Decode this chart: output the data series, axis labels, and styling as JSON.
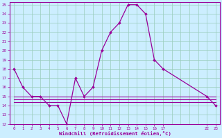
{
  "xlabel": "Windchill (Refroidissement éolien,°C)",
  "line_color": "#990099",
  "bg_color": "#cceeff",
  "grid_color": "#99ccbb",
  "xlim": [
    -0.5,
    23.5
  ],
  "ylim": [
    12,
    25.3
  ],
  "xtick_positions": [
    0,
    1,
    2,
    3,
    4,
    5,
    6,
    7,
    8,
    9,
    10,
    11,
    12,
    13,
    14,
    15,
    16,
    17,
    22,
    23
  ],
  "xtick_labels": [
    "0",
    "1",
    "2",
    "3",
    "4",
    "5",
    "6",
    "7",
    "8",
    "9",
    "10",
    "11",
    "12",
    "13",
    "14",
    "15",
    "16",
    "17",
    "22",
    "23"
  ],
  "ytick_positions": [
    12,
    13,
    14,
    15,
    16,
    17,
    18,
    19,
    20,
    21,
    22,
    23,
    24,
    25
  ],
  "ytick_labels": [
    "12",
    "13",
    "14",
    "15",
    "16",
    "17",
    "18",
    "19",
    "20",
    "21",
    "22",
    "23",
    "24",
    "25"
  ],
  "x_curve1": [
    0,
    1,
    2,
    3,
    4,
    5,
    6,
    7,
    8,
    9,
    10,
    11,
    12,
    13,
    14,
    15,
    16,
    17,
    22,
    23
  ],
  "y_curve1": [
    18,
    16,
    15,
    15,
    14,
    14,
    12,
    17,
    15,
    16,
    20,
    22,
    23,
    25,
    25,
    24,
    19,
    18,
    15,
    14
  ],
  "x_flat1": [
    0,
    1,
    2,
    3,
    4,
    5,
    6,
    7,
    8,
    9,
    10,
    11,
    12,
    13,
    14,
    15,
    16,
    17,
    22,
    23
  ],
  "y_flat1": [
    15,
    15,
    15,
    15,
    15,
    15,
    15,
    15,
    15,
    15,
    15,
    15,
    15,
    15,
    15,
    15,
    15,
    15,
    15,
    15
  ],
  "x_flat2": [
    0,
    1,
    2,
    3,
    4,
    5,
    6,
    7,
    8,
    9,
    10,
    11,
    12,
    13,
    14,
    15,
    16,
    17,
    22,
    23
  ],
  "y_flat2": [
    14.7,
    14.7,
    14.7,
    14.7,
    14.7,
    14.7,
    14.7,
    14.7,
    14.7,
    14.7,
    14.7,
    14.7,
    14.7,
    14.7,
    14.7,
    14.7,
    14.7,
    14.7,
    14.7,
    14.7
  ],
  "x_flat3": [
    0,
    1,
    2,
    3,
    4,
    5,
    6,
    7,
    8,
    9,
    10,
    11,
    12,
    13,
    14,
    15,
    16,
    17,
    22,
    23
  ],
  "y_flat3": [
    14.4,
    14.4,
    14.4,
    14.4,
    14.4,
    14.4,
    14.4,
    14.4,
    14.4,
    14.4,
    14.4,
    14.4,
    14.4,
    14.4,
    14.4,
    14.4,
    14.4,
    14.4,
    14.4,
    14.4
  ],
  "marker_x": [
    0,
    1,
    2,
    3,
    4,
    5,
    6,
    7,
    8,
    9,
    10,
    11,
    12,
    13,
    14,
    15,
    16,
    17,
    22,
    23
  ],
  "marker_y": [
    18,
    16,
    15,
    15,
    14,
    14,
    12,
    17,
    15,
    16,
    20,
    22,
    23,
    25,
    25,
    24,
    19,
    18,
    15,
    14
  ]
}
